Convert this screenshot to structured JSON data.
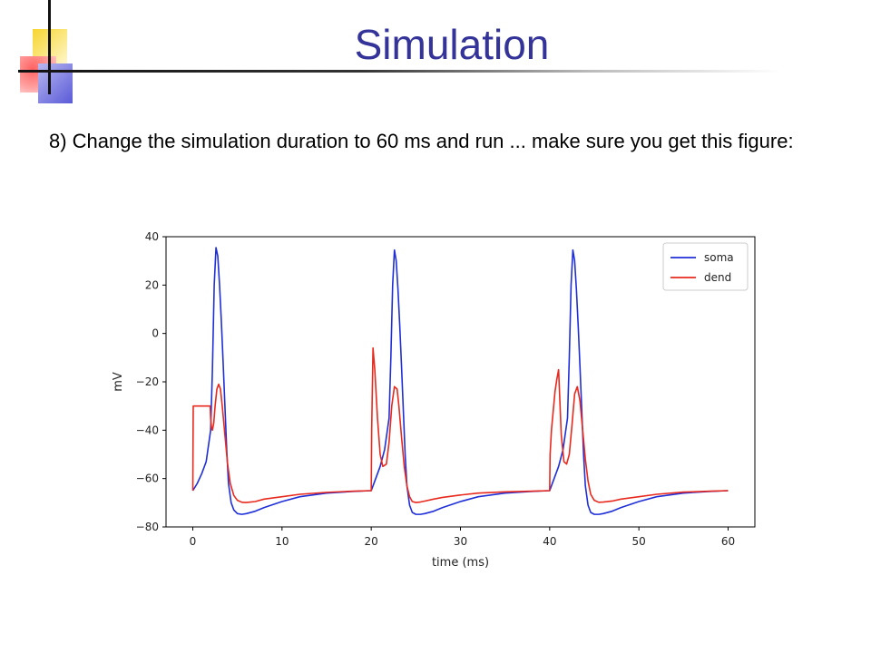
{
  "slide": {
    "title": "Simulation",
    "instruction": "8) Change the simulation duration to 60 ms and run ... make sure you get this figure:",
    "accent_colors": {
      "title": "#333399",
      "yellow": "#f7d530",
      "red": "#ff5a5a",
      "blue": "#5a5ad8"
    }
  },
  "chart_data": {
    "type": "line",
    "title": "",
    "xlabel": "time (ms)",
    "ylabel": "mV",
    "xlim": [
      -3,
      63
    ],
    "ylim": [
      -80,
      40
    ],
    "xticks": [
      0,
      10,
      20,
      30,
      40,
      50,
      60
    ],
    "yticks": [
      -80,
      -60,
      -40,
      -20,
      0,
      20,
      40
    ],
    "grid": false,
    "legend": "top-right",
    "series": [
      {
        "name": "soma",
        "color": "#1f2fd8",
        "x": [
          0,
          0.5,
          1,
          1.5,
          2,
          2.2,
          2.4,
          2.6,
          2.8,
          3.0,
          3.2,
          3.4,
          3.6,
          3.8,
          4.0,
          4.3,
          4.6,
          5.0,
          5.5,
          6,
          7,
          8,
          10,
          12,
          15,
          18,
          20,
          20.1,
          20.5,
          21,
          21.5,
          22,
          22.2,
          22.4,
          22.6,
          22.8,
          23.0,
          23.2,
          23.4,
          23.6,
          23.8,
          24.0,
          24.3,
          24.6,
          25.0,
          25.5,
          26,
          27,
          28,
          30,
          32,
          35,
          38,
          40,
          40.1,
          40.5,
          41,
          41.5,
          42,
          42.2,
          42.4,
          42.6,
          42.8,
          43.0,
          43.2,
          43.4,
          43.6,
          43.8,
          44.0,
          44.3,
          44.6,
          45.0,
          45.5,
          46,
          47,
          48,
          50,
          52,
          55,
          58,
          60
        ],
        "y": [
          -65,
          -62,
          -58,
          -53,
          -40,
          -15,
          20,
          35.5,
          32,
          20,
          5,
          -12,
          -30,
          -48,
          -62,
          -70,
          -73,
          -74.5,
          -74.8,
          -74.5,
          -73.5,
          -72,
          -69.5,
          -67.5,
          -66,
          -65.3,
          -65,
          -64,
          -60,
          -55,
          -48,
          -35,
          -10,
          20,
          34.5,
          30,
          18,
          3,
          -14,
          -32,
          -50,
          -63,
          -71,
          -74,
          -74.8,
          -74.8,
          -74.5,
          -73.5,
          -72,
          -69.5,
          -67.5,
          -66,
          -65.3,
          -65,
          -64,
          -60,
          -55,
          -48,
          -35,
          -10,
          20,
          34.5,
          30,
          18,
          3,
          -14,
          -32,
          -50,
          -63,
          -71,
          -74,
          -74.8,
          -74.8,
          -74.5,
          -73.5,
          -72,
          -69.5,
          -67.5,
          -66,
          -65.3,
          -65
        ]
      },
      {
        "name": "dend",
        "color": "#e8291e",
        "x": [
          0,
          0.05,
          0.5,
          1,
          1.5,
          1.95,
          2.0,
          2.1,
          2.2,
          2.35,
          2.5,
          2.7,
          2.9,
          3.1,
          3.3,
          3.6,
          3.9,
          4.2,
          4.6,
          5.0,
          5.5,
          6,
          7,
          8,
          10,
          12,
          15,
          18,
          20,
          20.05,
          20.2,
          20.4,
          20.7,
          21.0,
          21.3,
          21.7,
          22.0,
          22.3,
          22.6,
          22.9,
          23.1,
          23.4,
          23.7,
          24.0,
          24.3,
          24.6,
          25.0,
          25.5,
          26,
          27,
          28,
          30,
          32,
          35,
          38,
          40,
          40.05,
          40.2,
          40.4,
          40.6,
          40.8,
          41.0,
          41.3,
          41.6,
          41.9,
          42.2,
          42.5,
          42.8,
          43.1,
          43.4,
          43.7,
          44.0,
          44.3,
          44.6,
          45.0,
          45.5,
          46,
          47,
          48,
          50,
          52,
          55,
          58,
          60
        ],
        "y": [
          -65,
          -30,
          -30,
          -30,
          -30,
          -30,
          -35,
          -39,
          -40,
          -37,
          -30,
          -23,
          -21,
          -23,
          -30,
          -42,
          -54,
          -62,
          -67,
          -69,
          -69.8,
          -69.9,
          -69.5,
          -68.5,
          -67.5,
          -66.5,
          -65.7,
          -65.2,
          -65,
          -40,
          -6,
          -15,
          -35,
          -50,
          -55,
          -54,
          -45,
          -30,
          -22,
          -23,
          -30,
          -43,
          -55,
          -63,
          -67.5,
          -69.5,
          -69.9,
          -69.7,
          -69.3,
          -68.5,
          -67.8,
          -66.8,
          -66,
          -65.5,
          -65.2,
          -65,
          -50,
          -40,
          -32,
          -24,
          -19,
          -15,
          -42,
          -53,
          -54,
          -50,
          -38,
          -25,
          -22,
          -28,
          -40,
          -52,
          -61,
          -66.5,
          -69,
          -69.8,
          -69.7,
          -69.3,
          -68.5,
          -67.5,
          -66.5,
          -65.6,
          -65.2,
          -65
        ]
      }
    ]
  }
}
